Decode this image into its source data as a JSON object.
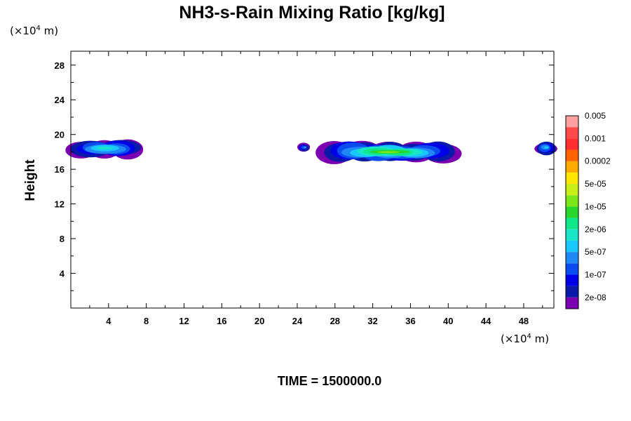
{
  "chart_data": {
    "type": "heatmap",
    "title": "NH3-s-Rain Mixing Ratio [kg/kg]",
    "ylabel": "Height",
    "x_unit": {
      "prefix": "(×10",
      "exp": "4",
      "suffix": " m)"
    },
    "y_unit": {
      "prefix": "(×10",
      "exp": "4",
      "suffix": " m)"
    },
    "xlim": [
      0,
      51.2
    ],
    "ylim": [
      0,
      29.6
    ],
    "x_ticks": [
      4,
      8,
      12,
      16,
      20,
      24,
      28,
      32,
      36,
      40,
      44,
      48
    ],
    "y_ticks": [
      4,
      8,
      12,
      16,
      20,
      24,
      28
    ],
    "grid": false,
    "colorbar": {
      "placement": "right",
      "colors": [
        "#7a00b0",
        "#0a1aa8",
        "#0000e6",
        "#0a4cf0",
        "#1f88f5",
        "#19c8ff",
        "#19e6c8",
        "#10e68a",
        "#26d62a",
        "#7ce61a",
        "#c8f016",
        "#ffe600",
        "#ffaa00",
        "#ff6400",
        "#ff2d2d",
        "#ff4a4a",
        "#ffa0a0"
      ],
      "labels": [
        "2e-08",
        "1e-07",
        "5e-07",
        "2e-06",
        "1e-05",
        "5e-05",
        "0.0002",
        "0.001",
        "0.005"
      ]
    },
    "regions": [
      {
        "x_range": [
          0.0,
          7.3
        ],
        "y_range": [
          17.2,
          19.6
        ],
        "max_level": 6
      },
      {
        "x_range": [
          24.2,
          25.2
        ],
        "y_range": [
          18.0,
          19.0
        ],
        "max_level": 4
      },
      {
        "x_range": [
          26.5,
          41.0
        ],
        "y_range": [
          16.7,
          19.3
        ],
        "max_level": 9
      },
      {
        "x_range": [
          49.4,
          51.2
        ],
        "y_range": [
          17.6,
          19.4
        ],
        "max_level": 5
      }
    ]
  },
  "footer": {
    "time_label": "TIME = 1500000.0"
  }
}
